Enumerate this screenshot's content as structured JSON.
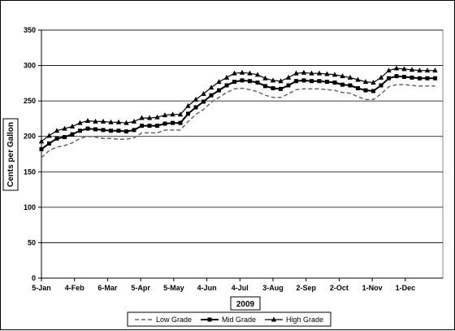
{
  "chart_data": {
    "type": "line",
    "xlabel": "2009",
    "ylabel": "Cents per Gallon",
    "ylim": [
      0,
      350
    ],
    "y_ticks": [
      0,
      50,
      100,
      150,
      200,
      250,
      300,
      350
    ],
    "x_ticks": [
      "5-Jan",
      "4-Feb",
      "6-Mar",
      "5-Apr",
      "5-May",
      "4-Jun",
      "4-Jul",
      "3-Aug",
      "2-Sep",
      "2-Oct",
      "1-Nov",
      "1-Dec"
    ],
    "x_tick_days": [
      5,
      35,
      65,
      95,
      125,
      155,
      185,
      215,
      245,
      275,
      305,
      335
    ],
    "x_range_days": [
      5,
      369
    ],
    "grid": "horizontal",
    "legend_position": "bottom",
    "x_days": [
      5,
      12,
      19,
      26,
      33,
      40,
      47,
      54,
      61,
      68,
      75,
      82,
      89,
      96,
      103,
      110,
      117,
      124,
      131,
      138,
      145,
      152,
      159,
      166,
      173,
      180,
      187,
      194,
      201,
      208,
      215,
      222,
      229,
      236,
      243,
      250,
      257,
      264,
      271,
      278,
      285,
      292,
      299,
      306,
      313,
      320,
      327,
      334,
      341,
      348,
      355,
      362
    ],
    "series": [
      {
        "name": "Low Grade",
        "color": "#666666",
        "values": [
          170,
          180,
          185,
          187,
          191,
          197,
          200,
          199,
          197,
          197,
          196,
          196,
          198,
          205,
          205,
          205,
          209,
          209,
          209,
          221,
          231,
          238,
          248,
          255,
          262,
          267,
          268,
          266,
          263,
          258,
          255,
          255,
          260,
          266,
          267,
          267,
          267,
          266,
          265,
          262,
          261,
          256,
          252,
          252,
          260,
          270,
          273,
          273,
          272,
          271,
          271,
          271
        ]
      },
      {
        "name": "Mid Grade",
        "color": "#000000",
        "values": [
          182,
          190,
          197,
          199,
          203,
          208,
          211,
          210,
          209,
          208,
          208,
          207,
          209,
          215,
          215,
          215,
          218,
          219,
          219,
          232,
          241,
          249,
          258,
          265,
          272,
          277,
          279,
          278,
          276,
          271,
          268,
          267,
          272,
          278,
          279,
          278,
          278,
          277,
          276,
          273,
          272,
          268,
          265,
          264,
          272,
          282,
          285,
          284,
          283,
          282,
          282,
          282
        ]
      },
      {
        "name": "High Grade",
        "color": "#000000",
        "values": [
          193,
          201,
          208,
          211,
          214,
          219,
          222,
          221,
          221,
          220,
          220,
          219,
          221,
          226,
          226,
          227,
          230,
          231,
          231,
          243,
          252,
          260,
          269,
          277,
          283,
          289,
          290,
          289,
          287,
          282,
          279,
          278,
          283,
          289,
          290,
          289,
          289,
          288,
          287,
          285,
          283,
          280,
          277,
          276,
          283,
          293,
          296,
          295,
          294,
          293,
          293,
          293
        ]
      }
    ]
  }
}
